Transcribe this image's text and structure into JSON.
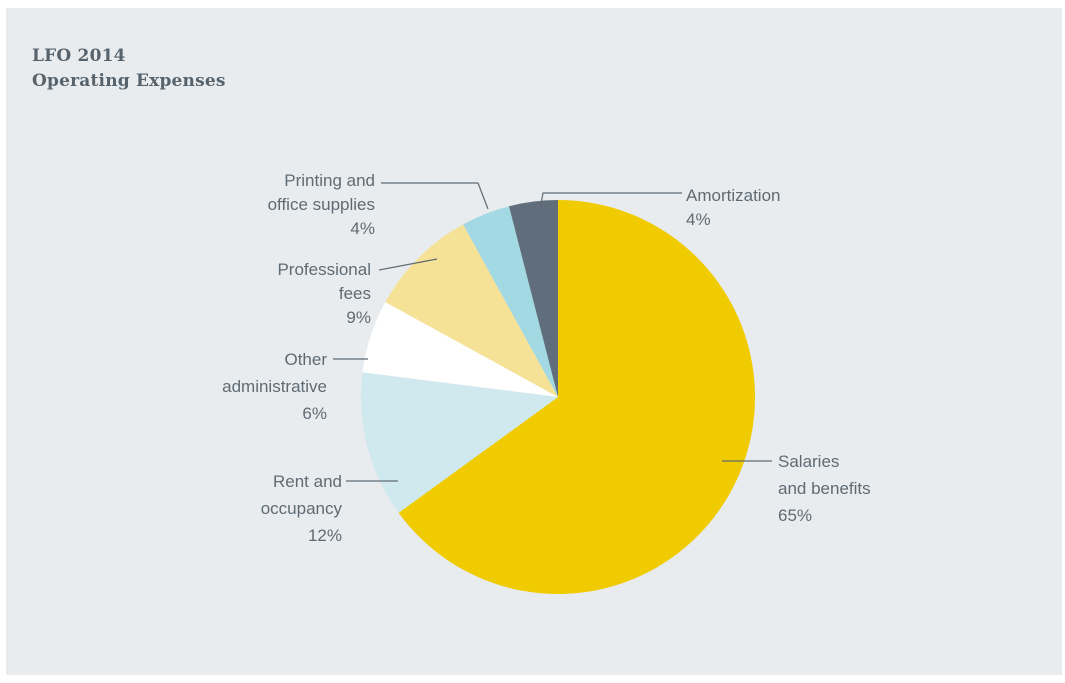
{
  "title": {
    "line1": "LFO 2014",
    "line2": "Operating Expenses"
  },
  "chart_data": {
    "type": "pie",
    "title": "LFO 2014 Operating Expenses",
    "slices": [
      {
        "name": "Salaries and benefits",
        "label_lines": [
          "Salaries",
          "and benefits"
        ],
        "pct_label": "65%",
        "value": 65,
        "color": "#efcb00"
      },
      {
        "name": "Rent and occupancy",
        "label_lines": [
          "Rent and",
          "occupancy"
        ],
        "pct_label": "12%",
        "value": 12,
        "color": "#cfe9ee"
      },
      {
        "name": "Other administrative",
        "label_lines": [
          "Other",
          "administrative"
        ],
        "pct_label": "6%",
        "value": 6,
        "color": "#ffffff"
      },
      {
        "name": "Professional fees",
        "label_lines": [
          "Professional",
          "fees"
        ],
        "pct_label": "9%",
        "value": 9,
        "color": "#f6e296"
      },
      {
        "name": "Printing and office supplies",
        "label_lines": [
          "Printing and",
          "office supplies"
        ],
        "pct_label": "4%",
        "value": 4,
        "color": "#a2d9e3"
      },
      {
        "name": "Amortization",
        "label_lines": [
          "Amortization"
        ],
        "pct_label": "4%",
        "value": 4,
        "color": "#5f6e7a"
      }
    ],
    "start": "12 o'clock",
    "direction": "clockwise",
    "legend": "none"
  }
}
